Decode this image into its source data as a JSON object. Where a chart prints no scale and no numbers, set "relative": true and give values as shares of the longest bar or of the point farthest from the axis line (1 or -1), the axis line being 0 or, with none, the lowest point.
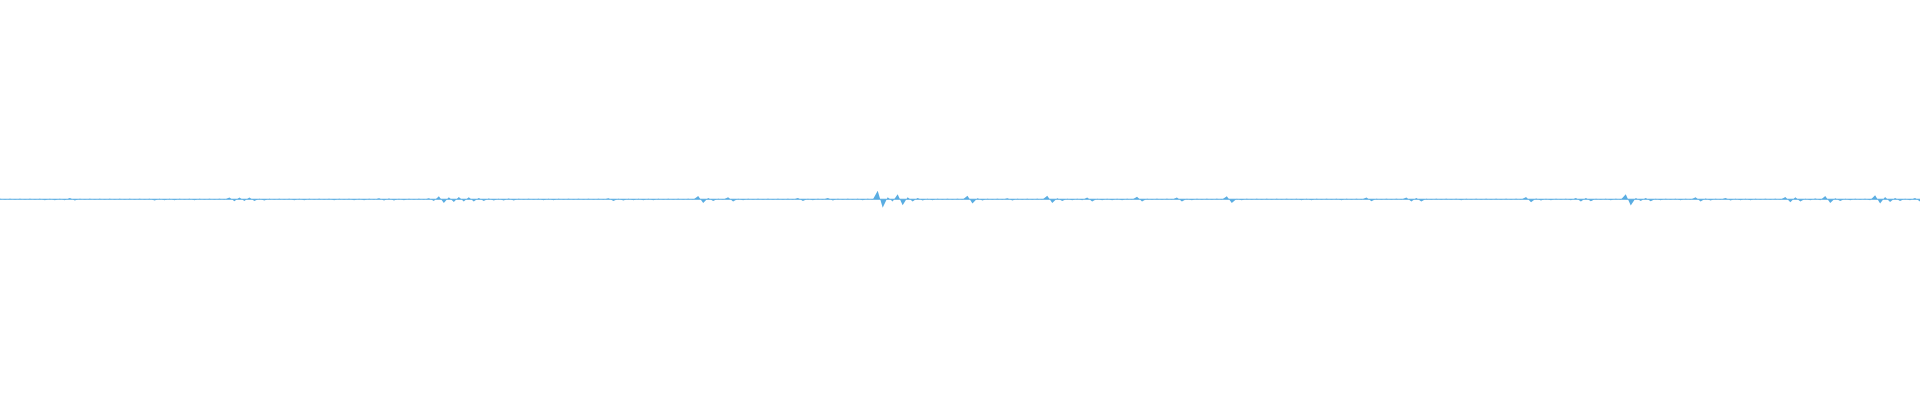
{
  "chart_data": {
    "type": "area",
    "relative": true,
    "categories": [
      null,
      null,
      null,
      null,
      null,
      null,
      null,
      null,
      null,
      null,
      null,
      null,
      null,
      null,
      null,
      null,
      null,
      null,
      null,
      null,
      null,
      null,
      null,
      null,
      null,
      null,
      null,
      null,
      null,
      null,
      null,
      null,
      null,
      null,
      null,
      null,
      null,
      null,
      null,
      null,
      null,
      null,
      null,
      null,
      null,
      null,
      null,
      null,
      null,
      null,
      null,
      null,
      null,
      null,
      null,
      null,
      null,
      null,
      null,
      null,
      null,
      null,
      null,
      null,
      null,
      null,
      null,
      null,
      null,
      null,
      null,
      null,
      null,
      null,
      null,
      null,
      null,
      null,
      null,
      null,
      null,
      null,
      null,
      null,
      null,
      null,
      null,
      null,
      null,
      null,
      null,
      null,
      null,
      null,
      null,
      null,
      null,
      null,
      null,
      null,
      null,
      null,
      null,
      null,
      null,
      null,
      null,
      null,
      null,
      null,
      null,
      null,
      null,
      null,
      null,
      null,
      null,
      null,
      null,
      null,
      null,
      null,
      null,
      null,
      null,
      null,
      null,
      null,
      null,
      null,
      null,
      null,
      null,
      null,
      null,
      null,
      null,
      null,
      null,
      null,
      null,
      null,
      null,
      null,
      null,
      null,
      null,
      null,
      null,
      null,
      null,
      null,
      null,
      null,
      null,
      null,
      null,
      null,
      null,
      null,
      null,
      null,
      null,
      null,
      null,
      null,
      null,
      null,
      null,
      null,
      null,
      null,
      null,
      null,
      null,
      null,
      null,
      null,
      null,
      null,
      null,
      null,
      null,
      null,
      null,
      null,
      null,
      null,
      null,
      null,
      null,
      null,
      null,
      null,
      null,
      null,
      null,
      null,
      null,
      null,
      null,
      null,
      null,
      null,
      null,
      null,
      null,
      null,
      null,
      null,
      null,
      null,
      null,
      null,
      null,
      null,
      null,
      null,
      null,
      null,
      null,
      null,
      null,
      null,
      null,
      null,
      null,
      null,
      null,
      null,
      null,
      null,
      null,
      null,
      null,
      null,
      null,
      null,
      null,
      null,
      null,
      null,
      null,
      null,
      null,
      null,
      null,
      null,
      null,
      null,
      null,
      null,
      null,
      null,
      null,
      null,
      null,
      null,
      null,
      null,
      null,
      null,
      null,
      null,
      null,
      null,
      null,
      null,
      null,
      null,
      null,
      null,
      null,
      null,
      null,
      null,
      null,
      null,
      null,
      null,
      null,
      null,
      null,
      null,
      null,
      null,
      null,
      null,
      null,
      null,
      null,
      null,
      null,
      null,
      null,
      null,
      null,
      null,
      null,
      null,
      null,
      null,
      null,
      null,
      null,
      null,
      null,
      null,
      null,
      null,
      null,
      null,
      null,
      null,
      null,
      null,
      null,
      null,
      null,
      null,
      null,
      null,
      null,
      null,
      null,
      null,
      null,
      null,
      null,
      null,
      null,
      null,
      null,
      null,
      null,
      null,
      null,
      null,
      null,
      null,
      null,
      null,
      null,
      null,
      null,
      null,
      null,
      null,
      null,
      null,
      null,
      null,
      null,
      null,
      null,
      null,
      null,
      null,
      null,
      null,
      null,
      null,
      null,
      null,
      null,
      null,
      null,
      null,
      null,
      null,
      null,
      null,
      null,
      null,
      null,
      null,
      null,
      null,
      null,
      null,
      null,
      null,
      null,
      null,
      null,
      null
    ],
    "series": [
      {
        "color": "#5aade2",
        "values": [
          0.06,
          -0.06,
          0.06,
          -0.06,
          0.06,
          -0.06,
          0.06,
          -0.06,
          0.06,
          -0.12,
          0.06,
          -0.1,
          0.06,
          -0.1,
          0.15,
          -0.15,
          0.06,
          -0.06,
          0.06,
          -0.06,
          0.06,
          -0.06,
          0.06,
          -0.06,
          0.06,
          -0.06,
          0.06,
          -0.06,
          0.06,
          -0.06,
          0.06,
          -0.15,
          0.06,
          -0.12,
          0.06,
          -0.1,
          0.06,
          -0.06,
          0.06,
          -0.12,
          0.06,
          -0.06,
          0.06,
          -0.06,
          0.06,
          -0.06,
          0.2,
          -0.23,
          0.2,
          -0.2,
          0.2,
          -0.2,
          0.06,
          -0.15,
          0.06,
          -0.06,
          0.06,
          -0.06,
          0.06,
          -0.1,
          0.06,
          -0.1,
          0.06,
          -0.06,
          0.06,
          -0.06,
          0.06,
          -0.1,
          0.06,
          -0.06,
          0.06,
          -0.12,
          0.06,
          -0.12,
          0.06,
          -0.06,
          0.12,
          -0.15,
          0.1,
          -0.15,
          0.06,
          -0.12,
          0.06,
          -0.06,
          0.06,
          -0.06,
          0.12,
          -0.2,
          0.35,
          -0.42,
          0.23,
          -0.3,
          0.27,
          -0.27,
          0.23,
          -0.27,
          0.15,
          -0.2,
          0.08,
          -0.15,
          0.06,
          -0.15,
          0.08,
          -0.15,
          0.06,
          -0.06,
          0.06,
          -0.06,
          0.06,
          -0.12,
          0.06,
          -0.1,
          0.06,
          -0.06,
          0.06,
          -0.06,
          0.06,
          -0.06,
          0.06,
          -0.06,
          0.06,
          -0.06,
          0.12,
          -0.2,
          0.06,
          -0.15,
          0.06,
          -0.1,
          0.06,
          -0.1,
          0.06,
          -0.1,
          0.06,
          -0.06,
          0.06,
          -0.06,
          0.06,
          -0.06,
          0.06,
          -0.06,
          0.38,
          -0.42,
          0.15,
          -0.2,
          0.06,
          -0.06,
          0.23,
          -0.27,
          0.06,
          -0.12,
          0.06,
          -0.06,
          0.06,
          -0.06,
          0.06,
          -0.06,
          0.06,
          -0.06,
          0.06,
          -0.06,
          0.15,
          -0.2,
          0.06,
          -0.12,
          0.06,
          -0.06,
          0.15,
          -0.15,
          0.06,
          -0.06,
          0.06,
          -0.06,
          0.06,
          -0.12,
          0.06,
          -0.06,
          1,
          -0.98,
          0.23,
          -0.27,
          0.6,
          -0.7,
          0.23,
          -0.27,
          0.15,
          -0.15,
          0.06,
          -0.1,
          0.06,
          -0.06,
          0.06,
          -0.06,
          0.06,
          -0.06,
          0.42,
          -0.5,
          0.12,
          -0.15,
          0.06,
          -0.06,
          0.06,
          -0.06,
          0.12,
          -0.15,
          0.06,
          -0.06,
          0.06,
          -0.06,
          0.06,
          -0.06,
          0.42,
          -0.42,
          0.12,
          -0.2,
          0.06,
          -0.1,
          0.06,
          -0.1,
          0.2,
          -0.27,
          0.06,
          -0.1,
          0.06,
          -0.1,
          0.06,
          -0.1,
          0.06,
          -0.06,
          0.3,
          -0.27,
          0.06,
          -0.06,
          0.06,
          -0.06,
          0.06,
          -0.06,
          0.2,
          -0.27,
          0.06,
          -0.1,
          0.06,
          -0.06,
          0.06,
          -0.06,
          0.06,
          -0.06,
          0.35,
          -0.42,
          0.06,
          -0.12,
          0.06,
          -0.06,
          0.06,
          -0.06,
          0.06,
          -0.06,
          0.06,
          -0.06,
          0.06,
          -0.06,
          0.06,
          -0.1,
          0.06,
          -0.12,
          0.06,
          -0.06,
          0.06,
          -0.06,
          0.06,
          -0.1,
          0.06,
          -0.06,
          0.06,
          -0.06,
          0.2,
          -0.23,
          0.06,
          -0.06,
          0.06,
          -0.06,
          0.06,
          -0.06,
          0.2,
          -0.27,
          0.15,
          -0.27,
          0.06,
          -0.06,
          0.06,
          -0.06,
          0.06,
          -0.06,
          0.06,
          -0.12,
          0.06,
          -0.06,
          0.06,
          -0.06,
          0.06,
          -0.06,
          0.06,
          -0.06,
          0.06,
          -0.06,
          0.06,
          -0.06,
          0.27,
          -0.35,
          0.08,
          -0.15,
          0.06,
          -0.1,
          0.06,
          -0.06,
          0.06,
          -0.1,
          0.15,
          -0.27,
          0.15,
          -0.23,
          0.06,
          -0.06,
          0.06,
          -0.12,
          0.06,
          -0.06,
          0.58,
          -0.73,
          0.15,
          -0.2,
          0.15,
          -0.23,
          0.06,
          -0.1,
          0.06,
          -0.06,
          0.06,
          -0.12,
          0.06,
          -0.06,
          0.23,
          -0.27,
          0.08,
          -0.15,
          0.06,
          -0.06,
          0.15,
          -0.15,
          0.06,
          -0.12,
          0.06,
          -0.12,
          0.06,
          -0.06,
          0.06,
          -0.06,
          0.06,
          -0.06,
          0.27,
          -0.35,
          0.23,
          -0.27,
          0.06,
          -0.12,
          0.1,
          -0.12,
          0.38,
          -0.42,
          0.12,
          -0.2,
          0.06,
          -0.1,
          0.06,
          -0.06,
          0.06,
          -0.1,
          0.47,
          -0.5,
          0.27,
          -0.3,
          0.15,
          -0.2,
          0.06,
          -0.12,
          0.15,
          -0.27
        ]
      }
    ]
  }
}
